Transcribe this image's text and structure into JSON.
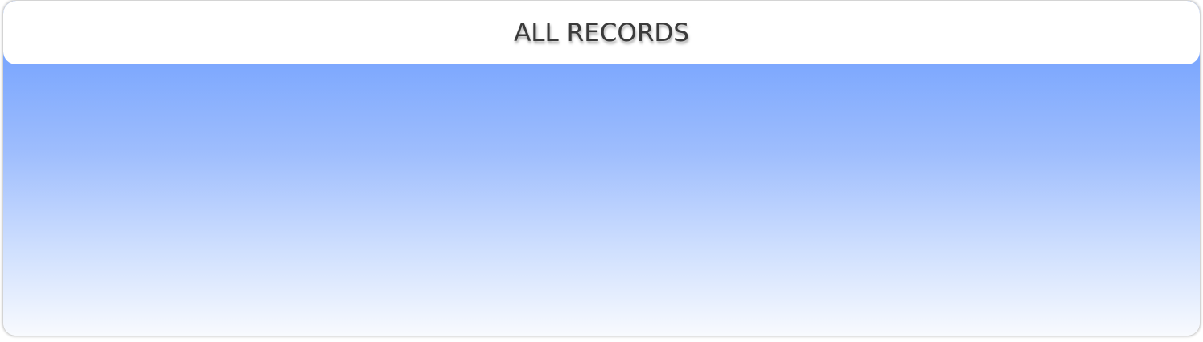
{
  "panel": {
    "title": "ALL RECORDS"
  },
  "colors": {
    "gradient_top": "#6699fe",
    "gradient_bottom": "#f8fafe",
    "header_background": "#ffffff",
    "title_text": "#3a3a3a"
  }
}
